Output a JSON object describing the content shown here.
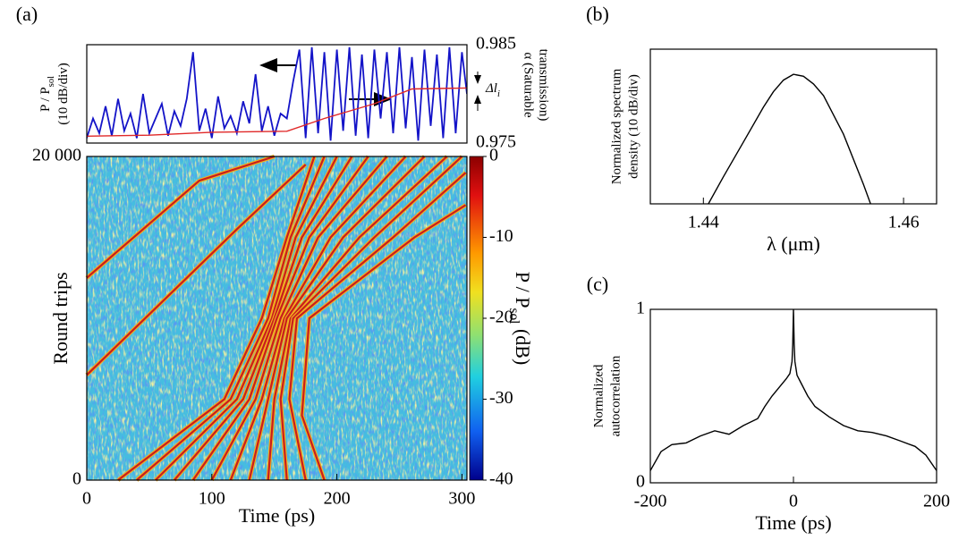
{
  "panels": {
    "a": "(a)",
    "b": "(b)",
    "c": "(c)"
  },
  "chart_data": [
    {
      "type": "line",
      "ylabel": [
        [
          {
            "text": "P / P"
          },
          {
            "text": "sol",
            "sub": true
          }
        ],
        [
          {
            "text": "(10 dB/div)"
          }
        ]
      ],
      "y2label": [
        "α (Saturable",
        "transmission)"
      ],
      "annotation": [
        {
          "text": "Δl"
        },
        {
          "text": "i",
          "sub": true
        }
      ],
      "xlim": [
        0,
        304
      ],
      "ylim": [
        -40,
        0
      ],
      "y2lim": [
        0.975,
        0.985
      ],
      "y2ticks": [
        0.975,
        0.985
      ],
      "series": [
        {
          "color": "#1414c8",
          "x": [
            0,
            5,
            10,
            15,
            20,
            25,
            30,
            35,
            40,
            45,
            50,
            55,
            60,
            65,
            70,
            75,
            80,
            85,
            90,
            95,
            100,
            105,
            110,
            115,
            120,
            125,
            130,
            135,
            140,
            145,
            150,
            155,
            160,
            165,
            170,
            175,
            180,
            185,
            190,
            195,
            200,
            205,
            210,
            215,
            220,
            225,
            230,
            235,
            240,
            245,
            250,
            255,
            260,
            265,
            270,
            275,
            280,
            285,
            290,
            295,
            300,
            304
          ],
          "values": [
            -38,
            -30,
            -36,
            -25,
            -37,
            -22,
            -35,
            -28,
            -38,
            -20,
            -36,
            -30,
            -24,
            -37,
            -27,
            -33,
            -22,
            -3,
            -35,
            -26,
            -38,
            -21,
            -34,
            -29,
            -36,
            -23,
            -32,
            -12,
            -35,
            -25,
            -37,
            -28,
            -30,
            -15,
            -2,
            -38,
            -1,
            -36,
            -3,
            -39,
            -2,
            -35,
            -1,
            -37,
            -4,
            -38,
            -2,
            -30,
            -3,
            -36,
            -1,
            -34,
            -5,
            -39,
            -2,
            -33,
            -4,
            -38,
            -1,
            -36,
            -3,
            -20
          ]
        },
        {
          "color": "#e02828",
          "axis": "y2",
          "x": [
            0,
            50,
            100,
            160,
            190,
            230,
            260,
            304
          ],
          "values": [
            0.9757,
            0.9758,
            0.9761,
            0.9762,
            0.9775,
            0.979,
            0.9805,
            0.9806
          ]
        }
      ]
    },
    {
      "type": "heatmap",
      "xlabel": "Time (ps)",
      "ylabel": "Round trips",
      "xlim": [
        0,
        304
      ],
      "xticks": [
        0,
        100,
        200,
        300
      ],
      "ylim": [
        0,
        20000
      ],
      "yticks": [
        0,
        {
          "value": 20000,
          "label": "20 000"
        }
      ],
      "colorbar": {
        "label": [
          {
            "text": "P / P"
          },
          {
            "text": "sol",
            "sub": true
          },
          {
            "text": " (dB)"
          }
        ],
        "lim": [
          -40,
          0
        ],
        "ticks": [
          0,
          -10,
          -20,
          -30,
          -40
        ]
      },
      "series": [
        {
          "color": "#c81e1e",
          "x": [
            25,
            110,
            140,
            160,
            182
          ],
          "values": [
            0,
            5000,
            10000,
            15000,
            20000
          ]
        },
        {
          "color": "#c81e1e",
          "x": [
            40,
            115,
            145,
            163,
            190
          ],
          "values": [
            0,
            5000,
            10000,
            15000,
            20000
          ]
        },
        {
          "color": "#c81e1e",
          "x": [
            55,
            120,
            148,
            167,
            200
          ],
          "values": [
            0,
            5000,
            10000,
            15000,
            20000
          ]
        },
        {
          "color": "#c81e1e",
          "x": [
            70,
            125,
            150,
            172,
            212
          ],
          "values": [
            0,
            5000,
            10000,
            15000,
            20000
          ]
        },
        {
          "color": "#c81e1e",
          "x": [
            85,
            130,
            152,
            178,
            225
          ],
          "values": [
            0,
            5000,
            10000,
            15000,
            20000
          ]
        },
        {
          "color": "#c81e1e",
          "x": [
            100,
            135,
            155,
            185,
            240
          ],
          "values": [
            0,
            5000,
            10000,
            15000,
            20000
          ]
        },
        {
          "color": "#c81e1e",
          "x": [
            115,
            140,
            158,
            195,
            255
          ],
          "values": [
            0,
            5000,
            10000,
            15000,
            20000
          ]
        },
        {
          "color": "#c81e1e",
          "x": [
            130,
            145,
            160,
            205,
            270
          ],
          "values": [
            0,
            5000,
            10000,
            15000,
            20000
          ]
        },
        {
          "color": "#c81e1e",
          "x": [
            145,
            150,
            163,
            218,
            288
          ],
          "values": [
            0,
            5000,
            10000,
            15000,
            20000
          ]
        },
        {
          "color": "#c81e1e",
          "x": [
            160,
            155,
            165,
            230,
            300
          ],
          "values": [
            0,
            5000,
            10000,
            15000,
            20000
          ]
        },
        {
          "color": "#c81e1e",
          "x": [
            175,
            162,
            168,
            245,
            303
          ],
          "values": [
            0,
            5000,
            10000,
            15000,
            19000
          ]
        },
        {
          "color": "#c81e1e",
          "x": [
            190,
            172,
            178,
            262,
            303
          ],
          "values": [
            0,
            4000,
            10000,
            15000,
            17000
          ]
        },
        {
          "color": "#c81e1e",
          "x": [
            0,
            60,
            120,
            175
          ],
          "values": [
            6500,
            11000,
            15500,
            19500
          ]
        },
        {
          "color": "#c81e1e",
          "x": [
            0,
            45,
            90,
            150
          ],
          "values": [
            12500,
            15500,
            18500,
            20000
          ]
        }
      ]
    },
    {
      "type": "line",
      "xlabel": "λ (μm)",
      "ylabel": [
        "Normalized spectrum",
        "density (10 dB/div)"
      ],
      "xlim": [
        1.4347,
        1.4633
      ],
      "xticks": [
        1.44,
        1.46
      ],
      "ylim": [
        -40,
        0
      ],
      "series": [
        {
          "color": "#000000",
          "x": [
            1.4405,
            1.442,
            1.444,
            1.446,
            1.447,
            1.448,
            1.449,
            1.45,
            1.451,
            1.452,
            1.454,
            1.456,
            1.4567
          ],
          "values": [
            -40,
            -33,
            -24,
            -15,
            -11,
            -8,
            -6.5,
            -7,
            -9,
            -12,
            -22,
            -35,
            -40
          ]
        }
      ]
    },
    {
      "type": "line",
      "xlabel": "Time (ps)",
      "ylabel": [
        "Normalized",
        "autocorrelation"
      ],
      "xlim": [
        -200,
        200
      ],
      "xticks": [
        -200,
        0,
        200
      ],
      "ylim": [
        0,
        1
      ],
      "yticks": [
        0,
        1
      ],
      "series": [
        {
          "color": "#000000",
          "x": [
            -200,
            -185,
            -170,
            -150,
            -130,
            -110,
            -90,
            -70,
            -50,
            -40,
            -30,
            -20,
            -10,
            -5,
            -2,
            -1,
            0,
            1,
            2,
            5,
            10,
            20,
            30,
            50,
            70,
            90,
            110,
            130,
            150,
            170,
            185,
            200
          ],
          "values": [
            0.07,
            0.18,
            0.22,
            0.23,
            0.27,
            0.3,
            0.28,
            0.33,
            0.37,
            0.44,
            0.5,
            0.55,
            0.6,
            0.63,
            0.7,
            0.8,
            1,
            0.8,
            0.7,
            0.62,
            0.58,
            0.5,
            0.44,
            0.38,
            0.33,
            0.3,
            0.29,
            0.27,
            0.24,
            0.21,
            0.16,
            0.07
          ]
        }
      ]
    }
  ]
}
